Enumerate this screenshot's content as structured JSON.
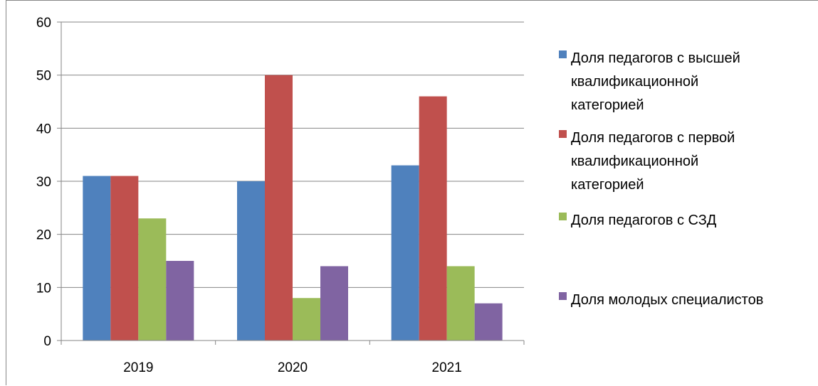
{
  "chart_data": {
    "type": "bar",
    "categories": [
      "2019",
      "2020",
      "2021"
    ],
    "series": [
      {
        "name": "Доля педагогов с высшей квалификационной категорией",
        "name_lines": [
          "Доля педагогов с высшей",
          "квалификационной",
          "категорией"
        ],
        "color": "#4F81BD",
        "values": [
          31,
          30,
          33
        ]
      },
      {
        "name": "Доля педагогов с первой квалификационной категорией",
        "name_lines": [
          "Доля педагогов с первой",
          "квалификационной",
          "категорией"
        ],
        "color": "#C0504D",
        "values": [
          31,
          50,
          46
        ]
      },
      {
        "name": "Доля педагогов с СЗД",
        "name_lines": [
          "Доля педагогов с СЗД"
        ],
        "color": "#9BBB59",
        "values": [
          23,
          8,
          14
        ]
      },
      {
        "name": "Доля молодых специалистов",
        "name_lines": [
          "Доля молодых специалистов"
        ],
        "color": "#8064A2",
        "values": [
          15,
          14,
          7
        ]
      }
    ],
    "ylim": [
      0,
      60
    ],
    "y_ticks": [
      0,
      10,
      20,
      30,
      40,
      50,
      60
    ],
    "grid": true,
    "legend_position": "right"
  }
}
